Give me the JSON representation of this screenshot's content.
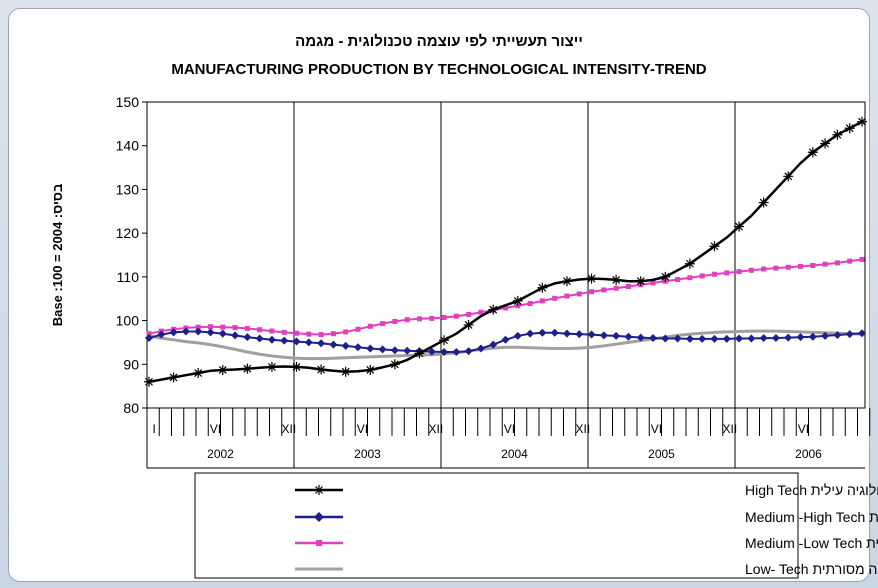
{
  "chart_data": {
    "type": "line",
    "title": "ייצור תעשייתי לפי עוצמה טכנולוגית - מגמה",
    "subtitle": "MANUFACTURING PRODUCTION BY TECHNOLOGICAL INTENSITY-TREND",
    "ylabel": "Base   :100 = 2004   :בסיס",
    "ylim": [
      80,
      150
    ],
    "yticks": [
      80,
      90,
      100,
      110,
      120,
      130,
      140,
      150
    ],
    "x_month_labels": [
      "I",
      "VI",
      "XII",
      "VI",
      "XII",
      "VI",
      "XII",
      "VI",
      "XII",
      "VI"
    ],
    "years": [
      "2002",
      "2003",
      "2004",
      "2005",
      "2006"
    ],
    "grid": "vertical lines at year boundaries",
    "legend_position": "bottom",
    "series": [
      {
        "name": "טכנולוגיה עילית High Tech",
        "color": "#000000",
        "marker": "star",
        "values": [
          86.0,
          86.5,
          87.0,
          87.5,
          88.0,
          88.5,
          88.7,
          88.8,
          89.0,
          89.2,
          89.4,
          89.5,
          89.4,
          89.2,
          88.8,
          88.5,
          88.3,
          88.4,
          88.7,
          89.3,
          90.0,
          91.0,
          92.5,
          94.0,
          95.5,
          97.0,
          99.0,
          101.0,
          102.5,
          103.5,
          104.5,
          106.0,
          107.5,
          108.5,
          109.0,
          109.4,
          109.6,
          109.5,
          109.3,
          109.0,
          109.0,
          109.3,
          110.0,
          111.5,
          113.0,
          115.0,
          117.0,
          119.0,
          121.5,
          124.0,
          127.0,
          130.0,
          133.0,
          136.0,
          138.5,
          140.5,
          142.5,
          144.0,
          145.5
        ]
      },
      {
        "name": "טכנולוגיה מעורבת עילית  Medium -High Tech",
        "color": "#1f1f8c",
        "marker": "diamond",
        "values": [
          96.0,
          96.8,
          97.3,
          97.5,
          97.5,
          97.3,
          97.0,
          96.6,
          96.2,
          95.9,
          95.6,
          95.4,
          95.2,
          95.0,
          94.8,
          94.5,
          94.2,
          93.9,
          93.6,
          93.4,
          93.2,
          93.1,
          93.0,
          92.9,
          92.8,
          92.8,
          93.0,
          93.6,
          94.5,
          95.6,
          96.5,
          97.0,
          97.2,
          97.2,
          97.0,
          96.9,
          96.8,
          96.6,
          96.5,
          96.3,
          96.1,
          96.0,
          95.9,
          95.9,
          95.8,
          95.8,
          95.8,
          95.8,
          95.9,
          95.9,
          96.0,
          96.0,
          96.1,
          96.2,
          96.3,
          96.5,
          96.7,
          96.9,
          97.1
        ]
      },
      {
        "name": "טכנולוגיה מעורבת מסורתית  Medium -Low Tech",
        "color": "#e23ec0",
        "marker": "square",
        "values": [
          97.0,
          97.6,
          98.0,
          98.3,
          98.5,
          98.6,
          98.5,
          98.4,
          98.2,
          97.9,
          97.6,
          97.3,
          97.1,
          96.9,
          96.8,
          97.0,
          97.4,
          98.0,
          98.7,
          99.3,
          99.8,
          100.2,
          100.4,
          100.5,
          100.7,
          101.0,
          101.4,
          101.9,
          102.4,
          102.9,
          103.4,
          103.9,
          104.5,
          105.1,
          105.6,
          106.1,
          106.6,
          107.0,
          107.4,
          107.8,
          108.2,
          108.6,
          109.0,
          109.4,
          109.8,
          110.2,
          110.6,
          110.9,
          111.2,
          111.5,
          111.8,
          112.0,
          112.2,
          112.4,
          112.6,
          112.9,
          113.2,
          113.6,
          114.0
        ]
      },
      {
        "name": "טכנולוגיה מסורתית   Low- Tech",
        "color": "#a0a0a0",
        "marker": "none",
        "values": [
          96.5,
          96.0,
          95.6,
          95.2,
          94.9,
          94.5,
          94.0,
          93.4,
          92.8,
          92.3,
          91.9,
          91.6,
          91.4,
          91.3,
          91.3,
          91.4,
          91.5,
          91.6,
          91.7,
          91.8,
          91.9,
          92.0,
          92.1,
          92.2,
          92.4,
          92.6,
          93.0,
          93.4,
          93.7,
          93.9,
          93.9,
          93.8,
          93.7,
          93.6,
          93.6,
          93.7,
          93.9,
          94.2,
          94.6,
          95.0,
          95.4,
          95.8,
          96.2,
          96.6,
          96.9,
          97.1,
          97.3,
          97.4,
          97.5,
          97.6,
          97.6,
          97.6,
          97.5,
          97.4,
          97.3,
          97.2,
          97.1,
          97.0,
          96.9
        ]
      }
    ]
  }
}
